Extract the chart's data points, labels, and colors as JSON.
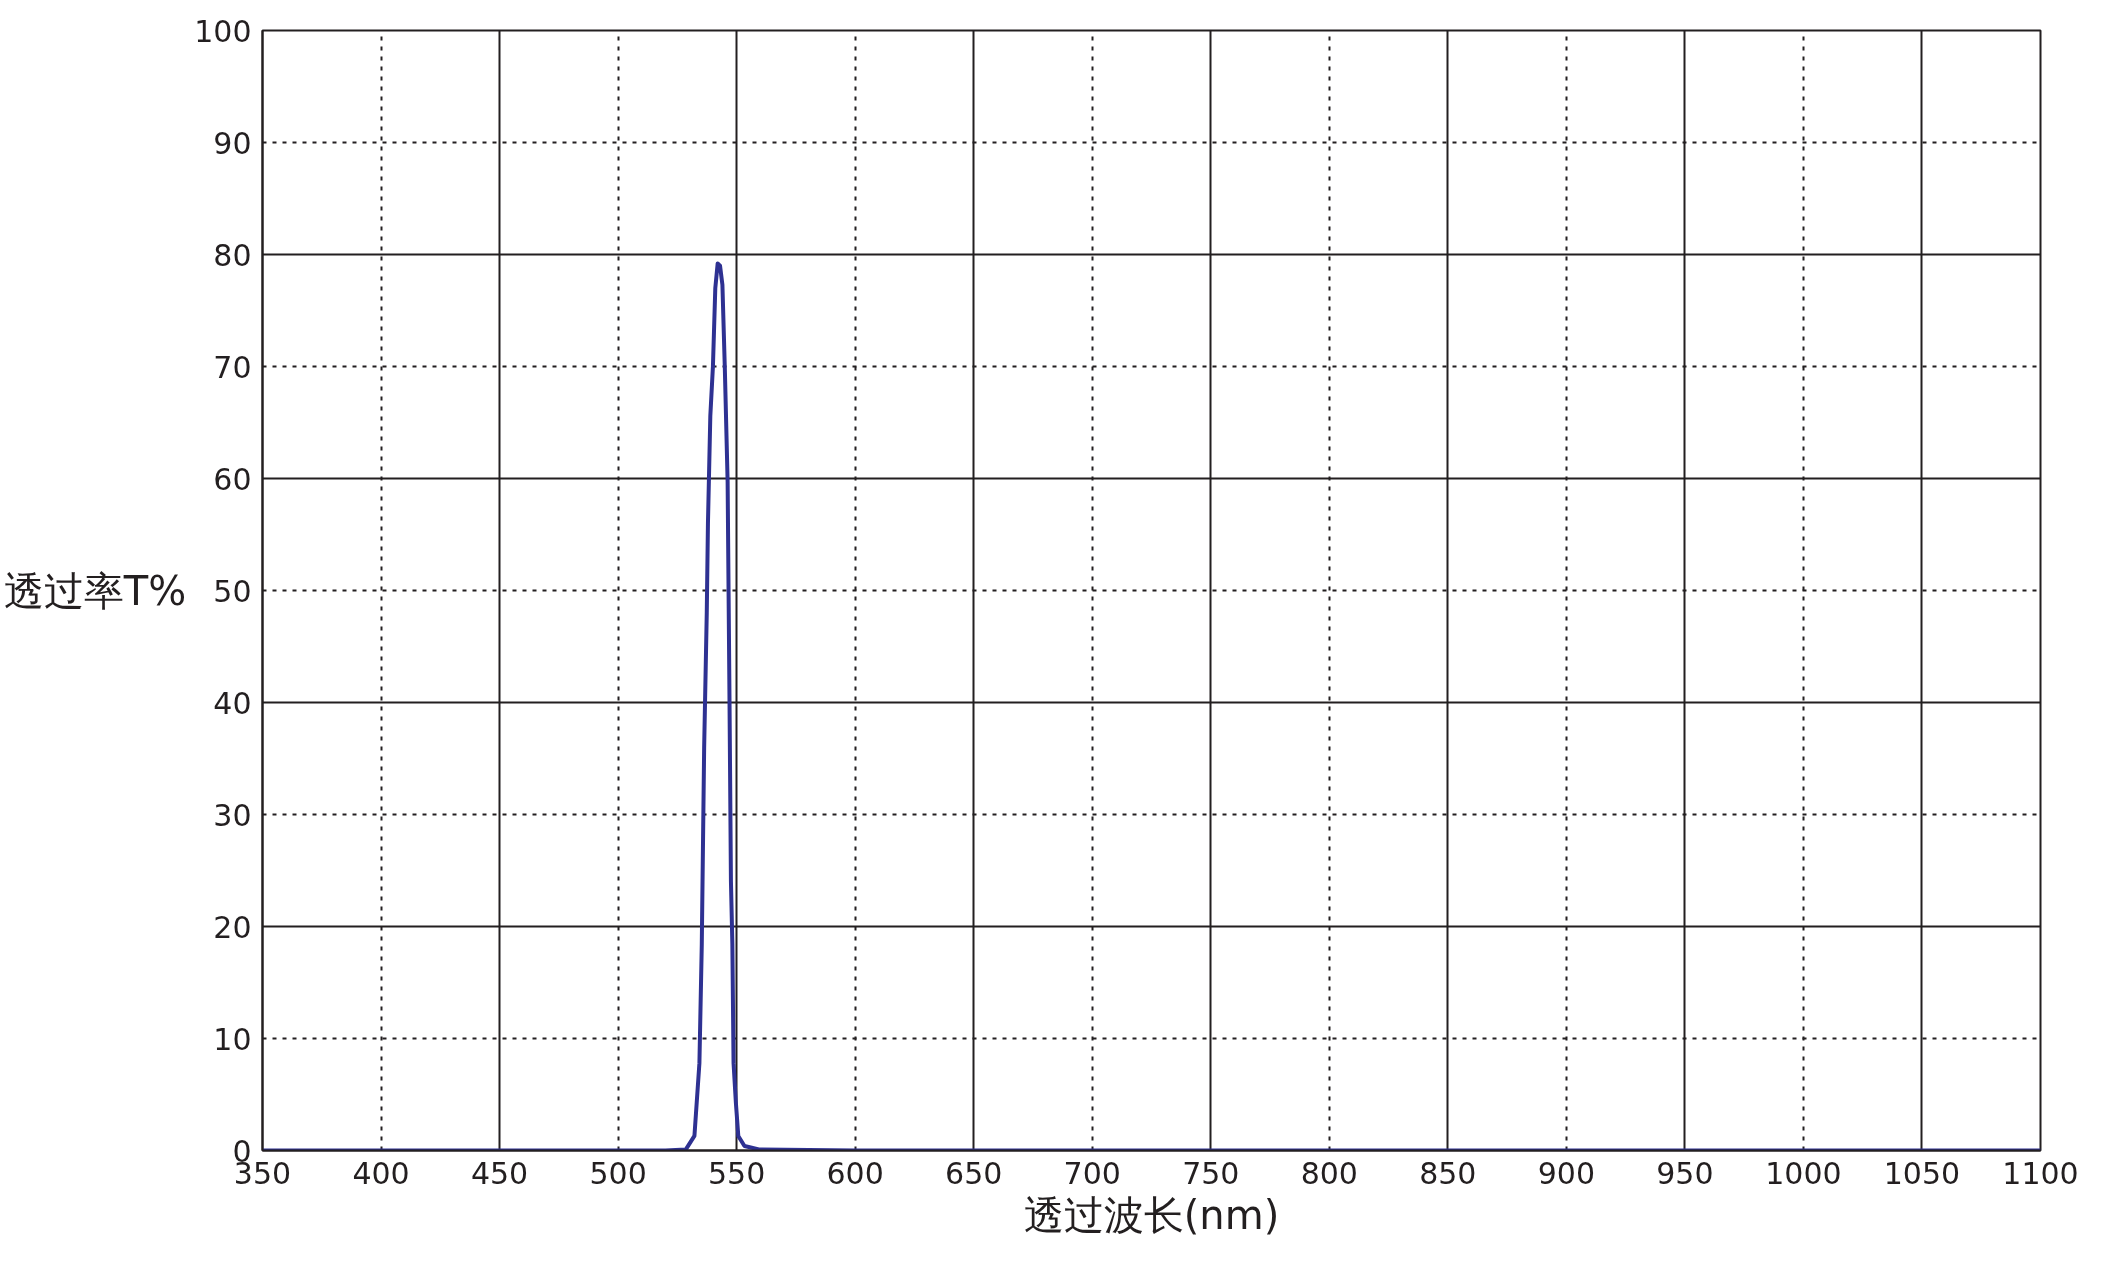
{
  "chart_data": {
    "type": "line",
    "xlabel": "透过波长(nm)",
    "ylabel": "透过率T%",
    "x": [
      350,
      400,
      450,
      500,
      520,
      528.6,
      532.2,
      534.3,
      535.3,
      536.3,
      537.4,
      537.9,
      538.9,
      540,
      541,
      542,
      543,
      544,
      545,
      546.2,
      547,
      547.6,
      548.2,
      548.7,
      549.7,
      550.7,
      553.3,
      559.4,
      600,
      700,
      800,
      900,
      1000,
      1100
    ],
    "series": [
      {
        "color": "#2e3192",
        "values": [
          0,
          0,
          0,
          0,
          0,
          0.1,
          1.3,
          7.8,
          18.4,
          36,
          48,
          56,
          65.6,
          70,
          77,
          79.2,
          79,
          77.3,
          70,
          59.7,
          40,
          24,
          18.4,
          7.8,
          4.2,
          1.3,
          0.4,
          0.1,
          0,
          0,
          0,
          0,
          0,
          0
        ]
      }
    ],
    "xlim": [
      350,
      1100
    ],
    "ylim": [
      0,
      100
    ],
    "xticks": [
      350,
      400,
      450,
      500,
      550,
      600,
      650,
      700,
      750,
      800,
      850,
      900,
      950,
      1000,
      1050,
      1100
    ],
    "yticks": [
      0,
      10,
      20,
      30,
      40,
      50,
      60,
      70,
      80,
      90,
      100
    ],
    "grid": true,
    "marker": "none",
    "line_style": "solid"
  }
}
